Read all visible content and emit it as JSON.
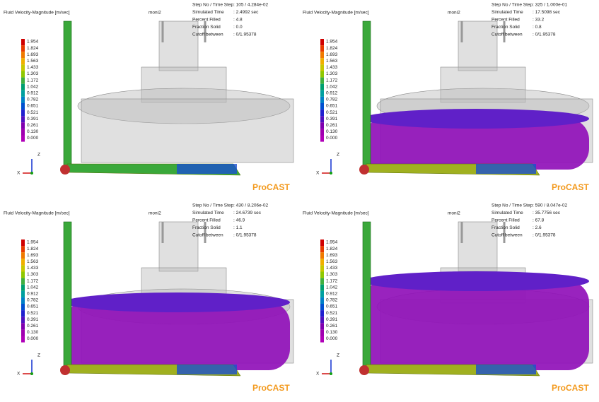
{
  "legend": [
    "1.954",
    "1.824",
    "1.693",
    "1.563",
    "1.433",
    "1.303",
    "1.172",
    "1.042",
    "0.912",
    "0.782",
    "0.651",
    "0.521",
    "0.391",
    "0.261",
    "0.130",
    "0.000"
  ],
  "info_labels": [
    "Step No / Time Step",
    "Simulated Time",
    "Percent Filled",
    "Fraction Solid",
    "Cutoff between"
  ],
  "panels": [
    {
      "title": "Fluid Velocity-Magnitude [m/sec]",
      "model": "moni2",
      "values": [
        ": 105 / 4.284e-02",
        ": 2.4992 sec",
        ": 4.8",
        ": 0.0",
        ": 0/1.95378"
      ],
      "axis_z": "Z",
      "axis_x": "X",
      "brand": "ProCAST"
    },
    {
      "title": "Fluid Velocity-Magnitude [m/sec]",
      "model": "moni2",
      "values": [
        ": 325 / 1.000e-01",
        ": 17.5098 sec",
        ": 33.2",
        ": 0.8",
        ": 0/1.95378"
      ],
      "axis_z": "Z",
      "axis_x": "X",
      "brand": "ProCAST"
    },
    {
      "title": "Fluid Velocity-Magnitude [m/sec]",
      "model": "moni2",
      "values": [
        ": 430 / 8.206e-02",
        ": 24.6739 sec",
        ": 46.9",
        ": 1.1",
        ": 0/1.95378"
      ],
      "axis_z": "Z",
      "axis_x": "X",
      "brand": "ProCAST"
    },
    {
      "title": "Fluid Velocity-Magnitude [m/sec]",
      "model": "moni2",
      "values": [
        ": 590 / 8.047e-02",
        ": 35.7756 sec",
        ": 67.8",
        ": 2.6",
        ": 0/1.95378"
      ],
      "axis_z": "Z",
      "axis_x": "X",
      "brand": "ProCAST"
    }
  ]
}
